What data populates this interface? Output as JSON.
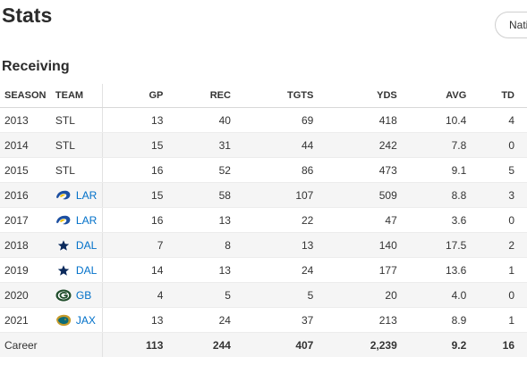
{
  "page": {
    "title": "Stats",
    "filter_label": "Nati"
  },
  "section": {
    "title": "Receiving"
  },
  "columns": [
    "SEASON",
    "TEAM",
    "GP",
    "REC",
    "TGTS",
    "YDS",
    "AVG",
    "TD"
  ],
  "rows": [
    {
      "season": "2013",
      "team": "STL",
      "logo": "none",
      "gp": "13",
      "rec": "40",
      "tgts": "69",
      "yds": "418",
      "avg": "10.4",
      "td": "4"
    },
    {
      "season": "2014",
      "team": "STL",
      "logo": "none",
      "gp": "15",
      "rec": "31",
      "tgts": "44",
      "yds": "242",
      "avg": "7.8",
      "td": "0"
    },
    {
      "season": "2015",
      "team": "STL",
      "logo": "none",
      "gp": "16",
      "rec": "52",
      "tgts": "86",
      "yds": "473",
      "avg": "9.1",
      "td": "5"
    },
    {
      "season": "2016",
      "team": "LAR",
      "logo": "rams-logo-icon",
      "gp": "15",
      "rec": "58",
      "tgts": "107",
      "yds": "509",
      "avg": "8.8",
      "td": "3"
    },
    {
      "season": "2017",
      "team": "LAR",
      "logo": "rams-logo-icon",
      "gp": "16",
      "rec": "13",
      "tgts": "22",
      "yds": "47",
      "avg": "3.6",
      "td": "0"
    },
    {
      "season": "2018",
      "team": "DAL",
      "logo": "cowboys-star-icon",
      "gp": "7",
      "rec": "8",
      "tgts": "13",
      "yds": "140",
      "avg": "17.5",
      "td": "2"
    },
    {
      "season": "2019",
      "team": "DAL",
      "logo": "cowboys-star-icon",
      "gp": "14",
      "rec": "13",
      "tgts": "24",
      "yds": "177",
      "avg": "13.6",
      "td": "1"
    },
    {
      "season": "2020",
      "team": "GB",
      "logo": "packers-g-icon",
      "gp": "4",
      "rec": "5",
      "tgts": "5",
      "yds": "20",
      "avg": "4.0",
      "td": "0"
    },
    {
      "season": "2021",
      "team": "JAX",
      "logo": "jaguars-logo-icon",
      "gp": "13",
      "rec": "24",
      "tgts": "37",
      "yds": "213",
      "avg": "8.9",
      "td": "1"
    }
  ],
  "career": {
    "label": "Career",
    "gp": "113",
    "rec": "244",
    "tgts": "407",
    "yds": "2,239",
    "avg": "9.2",
    "td": "16"
  },
  "colors": {
    "link": "#0070c9",
    "rams": "#1c4fa0",
    "rams_horn": "#f2c200",
    "cowboys": "#0b2a5c",
    "packers": "#1f4d2b",
    "packers_g": "#ffb612",
    "jaguars": "#0b6b78",
    "jaguars_gold": "#c59a2a"
  }
}
